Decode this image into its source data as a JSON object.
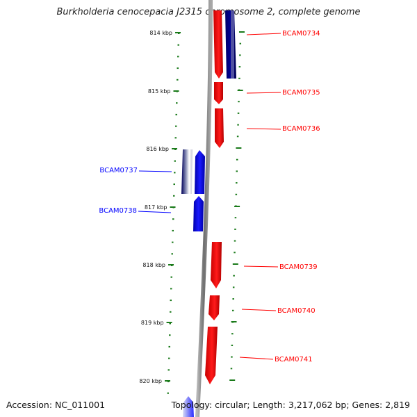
{
  "title": "Burkholderia cenocepacia J2315 chromosome 2, complete genome",
  "footer": {
    "accession": "Accession: NC_011001",
    "stats": "Topology: circular; Length: 3,217,062 bp; Genes: 2,819"
  },
  "colors": {
    "forward": "#ff0000",
    "reverse": "#0000ff",
    "ticks": "#1a7a1a",
    "backbone": "#808080"
  },
  "ticks": [
    {
      "label": "814 kbp"
    },
    {
      "label": "815 kbp"
    },
    {
      "label": "816 kbp"
    },
    {
      "label": "817 kbp"
    },
    {
      "label": "818 kbp"
    },
    {
      "label": "819 kbp"
    },
    {
      "label": "820 kbp"
    }
  ],
  "genes": [
    {
      "label": "BCAM0734",
      "strand": "forward"
    },
    {
      "label": "BCAM0735",
      "strand": "forward"
    },
    {
      "label": "BCAM0736",
      "strand": "forward"
    },
    {
      "label": "BCAM0737",
      "strand": "reverse"
    },
    {
      "label": "BCAM0738",
      "strand": "reverse"
    },
    {
      "label": "BCAM0739",
      "strand": "forward"
    },
    {
      "label": "BCAM0740",
      "strand": "forward"
    },
    {
      "label": "BCAM0741",
      "strand": "forward"
    }
  ]
}
